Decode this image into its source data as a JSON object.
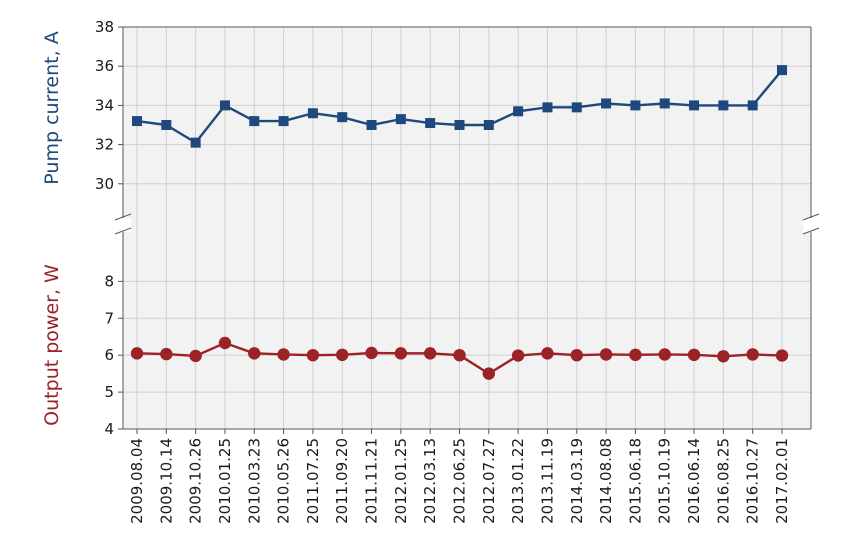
{
  "chart_data": {
    "type": "line",
    "title": "",
    "xlabel": "",
    "x": [
      "2009.08.04",
      "2009.10.14",
      "2009.10.26",
      "2010.01.25",
      "2010.03.23",
      "2010.05.26",
      "2011.07.25",
      "2011.09.20",
      "2011.11.21",
      "2012.01.25",
      "2012.03.13",
      "2012.06.25",
      "2012.07.27",
      "2013.01.22",
      "2013.11.19",
      "2014.03.19",
      "2014.08.08",
      "2015.06.18",
      "2015.10.19",
      "2016.06.14",
      "2016.08.25",
      "2016.10.27",
      "2017.02.01"
    ],
    "grid": true,
    "axis_break": true,
    "panels": [
      {
        "ylabel": "Pump current, A",
        "ylim": [
          28,
          38
        ],
        "yticks": [
          30,
          32,
          34,
          36,
          38
        ],
        "color": "#1f497d",
        "marker": "square",
        "series": [
          {
            "values": [
              33.2,
              33.0,
              32.1,
              34.0,
              33.2,
              33.2,
              33.6,
              33.4,
              33.0,
              33.3,
              33.1,
              33.0,
              33.0,
              33.7,
              33.9,
              33.9,
              34.1,
              34.0,
              34.1,
              34.0,
              34.0,
              34.0,
              35.8
            ]
          }
        ]
      },
      {
        "ylabel": "Output power, W",
        "ylim": [
          4,
          9.5
        ],
        "yticks": [
          4,
          5,
          6,
          7,
          8
        ],
        "color": "#9b2226",
        "marker": "circle",
        "series": [
          {
            "values": [
              6.05,
              6.03,
              5.98,
              6.33,
              6.05,
              6.02,
              6.0,
              6.01,
              6.06,
              6.05,
              6.05,
              6.0,
              5.5,
              5.99,
              6.05,
              6.0,
              6.02,
              6.01,
              6.02,
              6.01,
              5.97,
              6.02,
              5.99
            ]
          }
        ]
      }
    ]
  }
}
